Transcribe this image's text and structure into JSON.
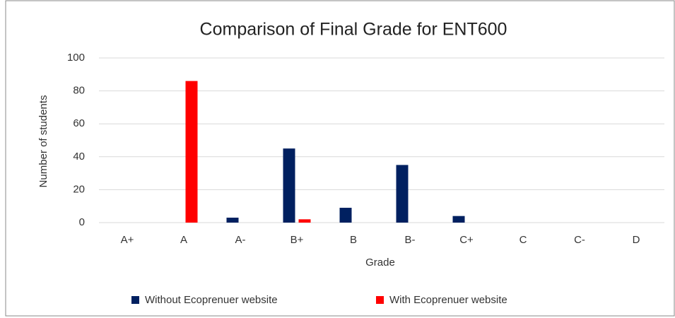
{
  "chart_data": {
    "type": "bar",
    "title": "Comparison of Final Grade for ENT600",
    "x_label": "Grade",
    "y_label": "Number  of students",
    "categories": [
      "A+",
      "A",
      "A-",
      "B+",
      "B",
      "B-",
      "C+",
      "C",
      "C-",
      "D"
    ],
    "series": [
      {
        "name": "Without Ecoprenuer website",
        "color": "#002060",
        "values": [
          0,
          0,
          3,
          45,
          9,
          35,
          4,
          0,
          0,
          0
        ]
      },
      {
        "name": "With Ecoprenuer website",
        "color": "#ff0000",
        "values": [
          0,
          86,
          0,
          2,
          0,
          0,
          0,
          0,
          0,
          0
        ]
      }
    ],
    "ylim": [
      0,
      100
    ],
    "yticks": [
      0,
      20,
      40,
      60,
      80,
      100
    ],
    "grid": true,
    "legend": "bottom"
  }
}
